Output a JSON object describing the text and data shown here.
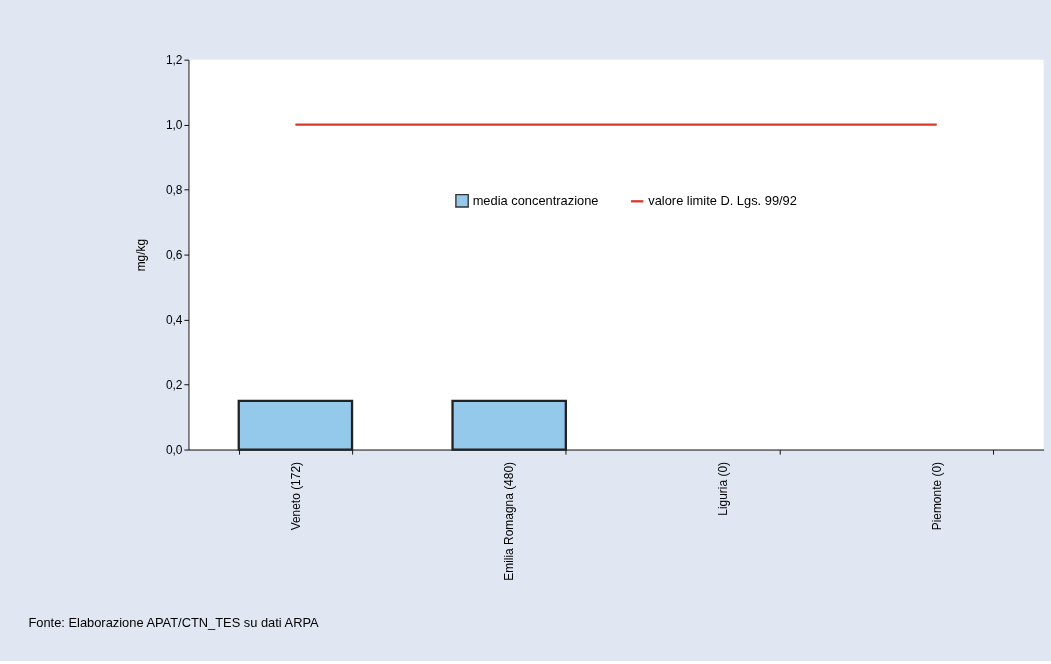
{
  "chart_data": {
    "type": "bar",
    "ylabel": "mg/kg",
    "categories": [
      "Veneto (172)",
      "Emilia Romagna (480)",
      "Liguria (0)",
      "Piemonte (0)"
    ],
    "series": [
      {
        "name": "media concentrazione",
        "color": "#95c9ec",
        "values": [
          0.15,
          0.15,
          0,
          0
        ]
      },
      {
        "name": "valore limite D. Lgs. 99/92",
        "type": "line",
        "color": "#d9382c",
        "values": [
          1.0,
          1.0,
          1.0,
          1.0
        ]
      }
    ],
    "ylim": [
      0,
      1.2
    ],
    "yticks": [
      {
        "value": 0,
        "label": "0,0"
      },
      {
        "value": 0.2,
        "label": "0,2"
      },
      {
        "value": 0.4,
        "label": "0,4"
      },
      {
        "value": 0.6,
        "label": "0,6"
      },
      {
        "value": 0.8,
        "label": "0,8"
      },
      {
        "value": 1.0,
        "label": "1,0"
      },
      {
        "value": 1.2,
        "label": "1,2"
      }
    ],
    "grid": false,
    "legend": "top",
    "annotations": [
      "Fonte: Elaborazione APAT/CTN_TES su dati ARPA"
    ]
  }
}
